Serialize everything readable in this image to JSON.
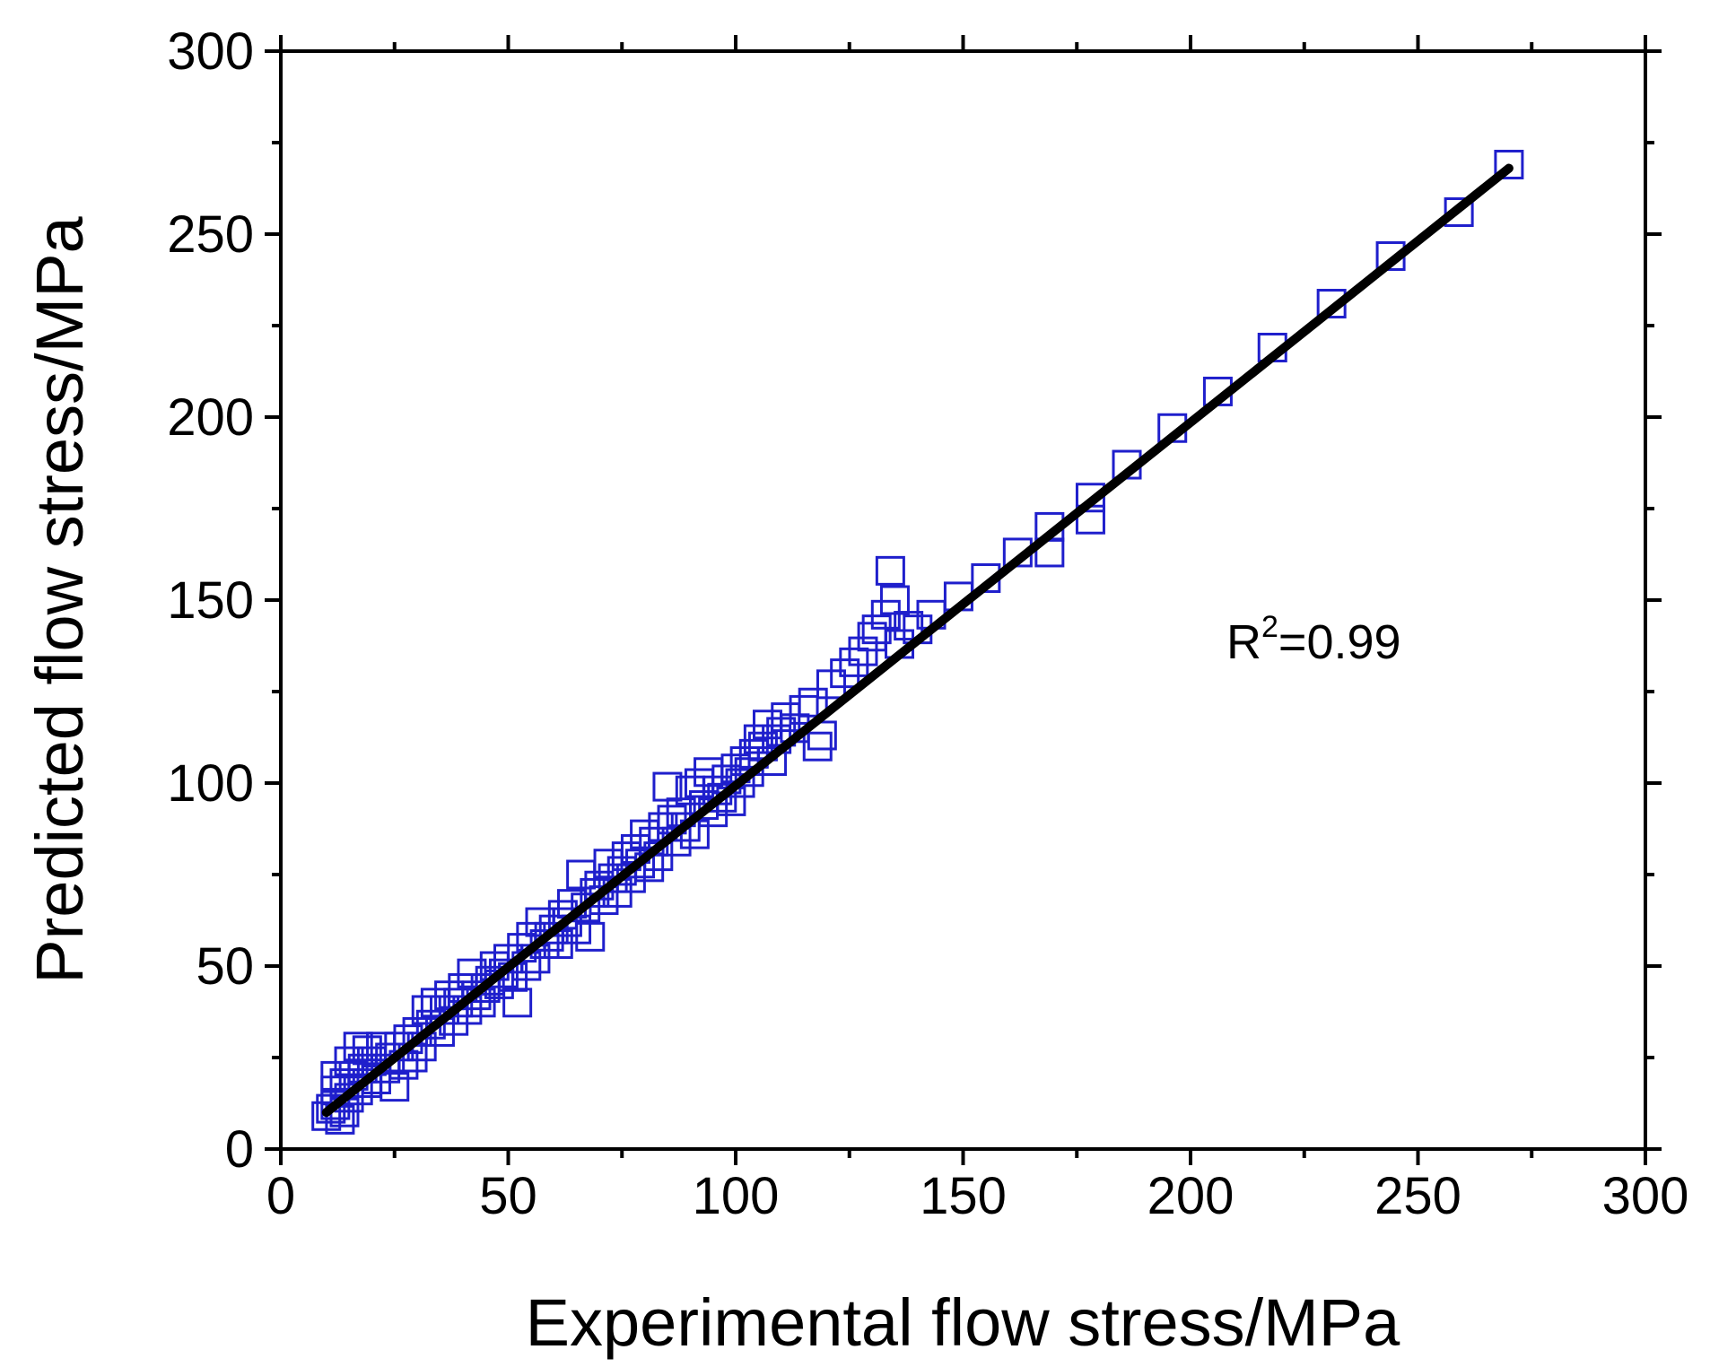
{
  "chart_data": {
    "type": "scatter",
    "title": "",
    "xlabel": "Experimental flow stress/MPa",
    "ylabel": "Predicted flow stress/MPa",
    "xlim": [
      0,
      300
    ],
    "ylim": [
      0,
      300
    ],
    "xticks": [
      0,
      50,
      100,
      150,
      200,
      250,
      300
    ],
    "yticks": [
      0,
      50,
      100,
      150,
      200,
      250,
      300
    ],
    "grid": false,
    "annotation": {
      "base": "R",
      "sup": "2",
      "rest": "=0.99"
    },
    "colors": {
      "marker": "#1f1fcc",
      "fit_line": "#000000",
      "axis": "#000000"
    },
    "series": [
      {
        "name": "data",
        "marker": "open-square",
        "points": [
          [
            10,
            9
          ],
          [
            11,
            11
          ],
          [
            12,
            12
          ],
          [
            12,
            16
          ],
          [
            12,
            20
          ],
          [
            13,
            8
          ],
          [
            14,
            10
          ],
          [
            14,
            18
          ],
          [
            15,
            14
          ],
          [
            15,
            24
          ],
          [
            16,
            20
          ],
          [
            17,
            16
          ],
          [
            17,
            28
          ],
          [
            18,
            22
          ],
          [
            19,
            18
          ],
          [
            19,
            27
          ],
          [
            20,
            24
          ],
          [
            21,
            19
          ],
          [
            22,
            28
          ],
          [
            23,
            22
          ],
          [
            24,
            25
          ],
          [
            25,
            17
          ],
          [
            26,
            28
          ],
          [
            27,
            23
          ],
          [
            28,
            30
          ],
          [
            29,
            25
          ],
          [
            30,
            32
          ],
          [
            31,
            28
          ],
          [
            32,
            38
          ],
          [
            33,
            34
          ],
          [
            34,
            40
          ],
          [
            35,
            32
          ],
          [
            36,
            38
          ],
          [
            37,
            42
          ],
          [
            38,
            35
          ],
          [
            39,
            40
          ],
          [
            40,
            44
          ],
          [
            41,
            38
          ],
          [
            42,
            48
          ],
          [
            43,
            42
          ],
          [
            44,
            40
          ],
          [
            45,
            44
          ],
          [
            46,
            46
          ],
          [
            47,
            50
          ],
          [
            48,
            45
          ],
          [
            49,
            48
          ],
          [
            50,
            52
          ],
          [
            51,
            47
          ],
          [
            52,
            40
          ],
          [
            53,
            55
          ],
          [
            54,
            50
          ],
          [
            55,
            58
          ],
          [
            56,
            52
          ],
          [
            57,
            62
          ],
          [
            58,
            56
          ],
          [
            59,
            58
          ],
          [
            60,
            60
          ],
          [
            61,
            56
          ],
          [
            62,
            64
          ],
          [
            63,
            62
          ],
          [
            64,
            67
          ],
          [
            65,
            60
          ],
          [
            66,
            75
          ],
          [
            67,
            66
          ],
          [
            68,
            58
          ],
          [
            69,
            70
          ],
          [
            70,
            72
          ],
          [
            71,
            68
          ],
          [
            72,
            78
          ],
          [
            73,
            74
          ],
          [
            74,
            70
          ],
          [
            75,
            76
          ],
          [
            76,
            80
          ],
          [
            77,
            74
          ],
          [
            78,
            82
          ],
          [
            79,
            78
          ],
          [
            80,
            86
          ],
          [
            81,
            77
          ],
          [
            82,
            84
          ],
          [
            83,
            80
          ],
          [
            84,
            88
          ],
          [
            85,
            99
          ],
          [
            86,
            90
          ],
          [
            87,
            84
          ],
          [
            88,
            92
          ],
          [
            89,
            88
          ],
          [
            90,
            98
          ],
          [
            91,
            86
          ],
          [
            92,
            100
          ],
          [
            93,
            94
          ],
          [
            94,
            103
          ],
          [
            95,
            92
          ],
          [
            96,
            98
          ],
          [
            97,
            96
          ],
          [
            98,
            101
          ],
          [
            99,
            95
          ],
          [
            100,
            104
          ],
          [
            101,
            100
          ],
          [
            102,
            106
          ],
          [
            103,
            103
          ],
          [
            104,
            108
          ],
          [
            105,
            112
          ],
          [
            106,
            110
          ],
          [
            107,
            116
          ],
          [
            108,
            106
          ],
          [
            109,
            112
          ],
          [
            110,
            114
          ],
          [
            111,
            118
          ],
          [
            113,
            115
          ],
          [
            115,
            120
          ],
          [
            117,
            122
          ],
          [
            118,
            110
          ],
          [
            119,
            113
          ],
          [
            121,
            127
          ],
          [
            124,
            130
          ],
          [
            126,
            133
          ],
          [
            128,
            136
          ],
          [
            130,
            140
          ],
          [
            131,
            142
          ],
          [
            133,
            146
          ],
          [
            134,
            158
          ],
          [
            135,
            150
          ],
          [
            136,
            138
          ],
          [
            138,
            143
          ],
          [
            140,
            142
          ],
          [
            143,
            146
          ],
          [
            149,
            151
          ],
          [
            155,
            156
          ],
          [
            162,
            163
          ],
          [
            169,
            163
          ],
          [
            169,
            170
          ],
          [
            178,
            172
          ],
          [
            178,
            178
          ],
          [
            186,
            187
          ],
          [
            196,
            197
          ],
          [
            206,
            207
          ],
          [
            218,
            219
          ],
          [
            231,
            231
          ],
          [
            244,
            244
          ],
          [
            259,
            256
          ],
          [
            270,
            269
          ]
        ]
      }
    ],
    "fit_line": {
      "x": [
        10,
        270
      ],
      "y": [
        10,
        268
      ]
    }
  }
}
